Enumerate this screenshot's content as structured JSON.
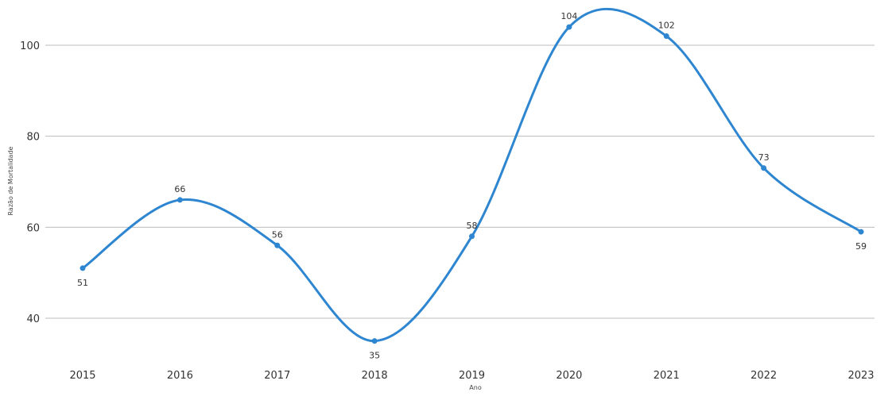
{
  "chart_data": {
    "type": "line",
    "x": [
      "2015",
      "2016",
      "2017",
      "2018",
      "2019",
      "2020",
      "2021",
      "2022",
      "2023"
    ],
    "series": [
      {
        "values": [
          51,
          66,
          56,
          35,
          58,
          104,
          102,
          73,
          59
        ]
      }
    ],
    "xlabel": "Ano",
    "ylabel": "Razão de Mortalidade",
    "yticks": [
      40,
      60,
      80,
      100
    ],
    "ylim": [
      30,
      108
    ],
    "grid": "horizontal",
    "smooth": true,
    "data_labels": true,
    "colors": {
      "series": "#2e86d1",
      "grid": "#bdbdbd"
    }
  }
}
